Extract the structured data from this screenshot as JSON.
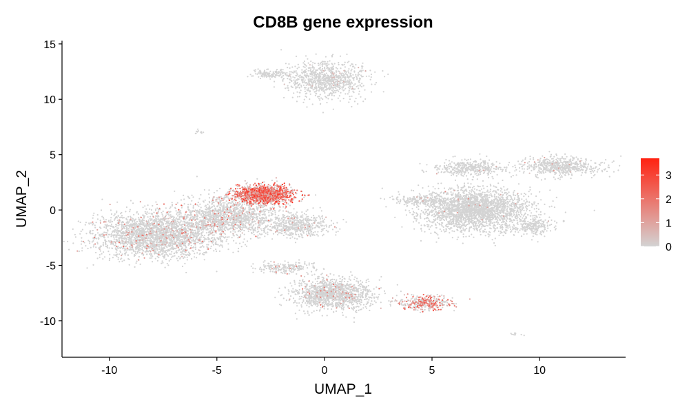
{
  "chart_data": {
    "type": "scatter",
    "title": "CD8B gene expression",
    "xlabel": "UMAP_1",
    "ylabel": "UMAP_2",
    "xlim": [
      -12.2,
      14.0
    ],
    "ylim": [
      -13.3,
      15.3
    ],
    "xticks": [
      -10,
      -5,
      0,
      5,
      10
    ],
    "xtick_labels": [
      "-10",
      "-5",
      "0",
      "5",
      "10"
    ],
    "yticks": [
      -10,
      -5,
      0,
      5,
      10,
      15
    ],
    "ytick_labels": [
      "-10",
      "-5",
      "0",
      "5",
      "10",
      "15"
    ],
    "grid": false,
    "legend": {
      "position": "right",
      "type": "colorbar",
      "min": 0,
      "max": 3.7,
      "ticks": [
        0,
        1,
        2,
        3
      ],
      "tick_labels": [
        "0",
        "1",
        "2",
        "3"
      ],
      "color_low": "#d3d3d3",
      "color_high": "#ff2211"
    },
    "clusters": [
      {
        "label": "top-main",
        "cx": 0.1,
        "cy": 11.8,
        "sx": 1.2,
        "sy": 1.1,
        "n": 900,
        "expr_frac": 0.02,
        "expr_max": 0.8
      },
      {
        "label": "top-small",
        "cx": -2.5,
        "cy": 12.3,
        "sx": 0.6,
        "sy": 0.3,
        "n": 120,
        "expr_frac": 0.0,
        "expr_max": 0
      },
      {
        "label": "tiny-left",
        "cx": -5.8,
        "cy": 7.0,
        "sx": 0.15,
        "sy": 0.15,
        "n": 12,
        "expr_frac": 0.0,
        "expr_max": 0
      },
      {
        "label": "left-big",
        "cx": -7.8,
        "cy": -2.3,
        "sx": 1.9,
        "sy": 1.3,
        "n": 2500,
        "expr_frac": 0.06,
        "expr_max": 2.2
      },
      {
        "label": "left-mid",
        "cx": -4.5,
        "cy": -0.6,
        "sx": 1.6,
        "sy": 1.2,
        "n": 1400,
        "expr_frac": 0.08,
        "expr_max": 2.4
      },
      {
        "label": "top-orange",
        "cx": -2.8,
        "cy": 1.4,
        "sx": 0.9,
        "sy": 0.55,
        "n": 1300,
        "expr_frac": 0.75,
        "expr_max": 3.6
      },
      {
        "label": "center-tail",
        "cx": -1.3,
        "cy": -1.4,
        "sx": 1.0,
        "sy": 0.7,
        "n": 500,
        "expr_frac": 0.03,
        "expr_max": 1.5
      },
      {
        "label": "bottom-mid",
        "cx": 0.4,
        "cy": -7.6,
        "sx": 1.2,
        "sy": 0.9,
        "n": 1300,
        "expr_frac": 0.05,
        "expr_max": 2.0
      },
      {
        "label": "bottom-stream",
        "cx": -1.8,
        "cy": -5.2,
        "sx": 0.9,
        "sy": 0.35,
        "n": 200,
        "expr_frac": 0.04,
        "expr_max": 2.0
      },
      {
        "label": "bottom-right",
        "cx": 4.7,
        "cy": -8.4,
        "sx": 0.8,
        "sy": 0.45,
        "n": 350,
        "expr_frac": 0.55,
        "expr_max": 2.8
      },
      {
        "label": "right-big",
        "cx": 7.0,
        "cy": 0.0,
        "sx": 1.7,
        "sy": 1.3,
        "n": 2500,
        "expr_frac": 0.01,
        "expr_max": 1.5
      },
      {
        "label": "right-upper",
        "cx": 6.8,
        "cy": 3.8,
        "sx": 1.1,
        "sy": 0.5,
        "n": 400,
        "expr_frac": 0.01,
        "expr_max": 1.0
      },
      {
        "label": "right-far",
        "cx": 11.0,
        "cy": 3.9,
        "sx": 1.2,
        "sy": 0.55,
        "n": 600,
        "expr_frac": 0.02,
        "expr_max": 1.5
      },
      {
        "label": "right-lower",
        "cx": 9.7,
        "cy": -1.5,
        "sx": 0.6,
        "sy": 0.5,
        "n": 200,
        "expr_frac": 0.0,
        "expr_max": 0
      },
      {
        "label": "left-arm",
        "cx": 4.4,
        "cy": 0.9,
        "sx": 0.9,
        "sy": 0.25,
        "n": 150,
        "expr_frac": 0.02,
        "expr_max": 1.0
      },
      {
        "label": "tiny-bottom",
        "cx": 8.8,
        "cy": -11.2,
        "sx": 0.2,
        "sy": 0.1,
        "n": 10,
        "expr_frac": 0.0,
        "expr_max": 0
      }
    ]
  }
}
